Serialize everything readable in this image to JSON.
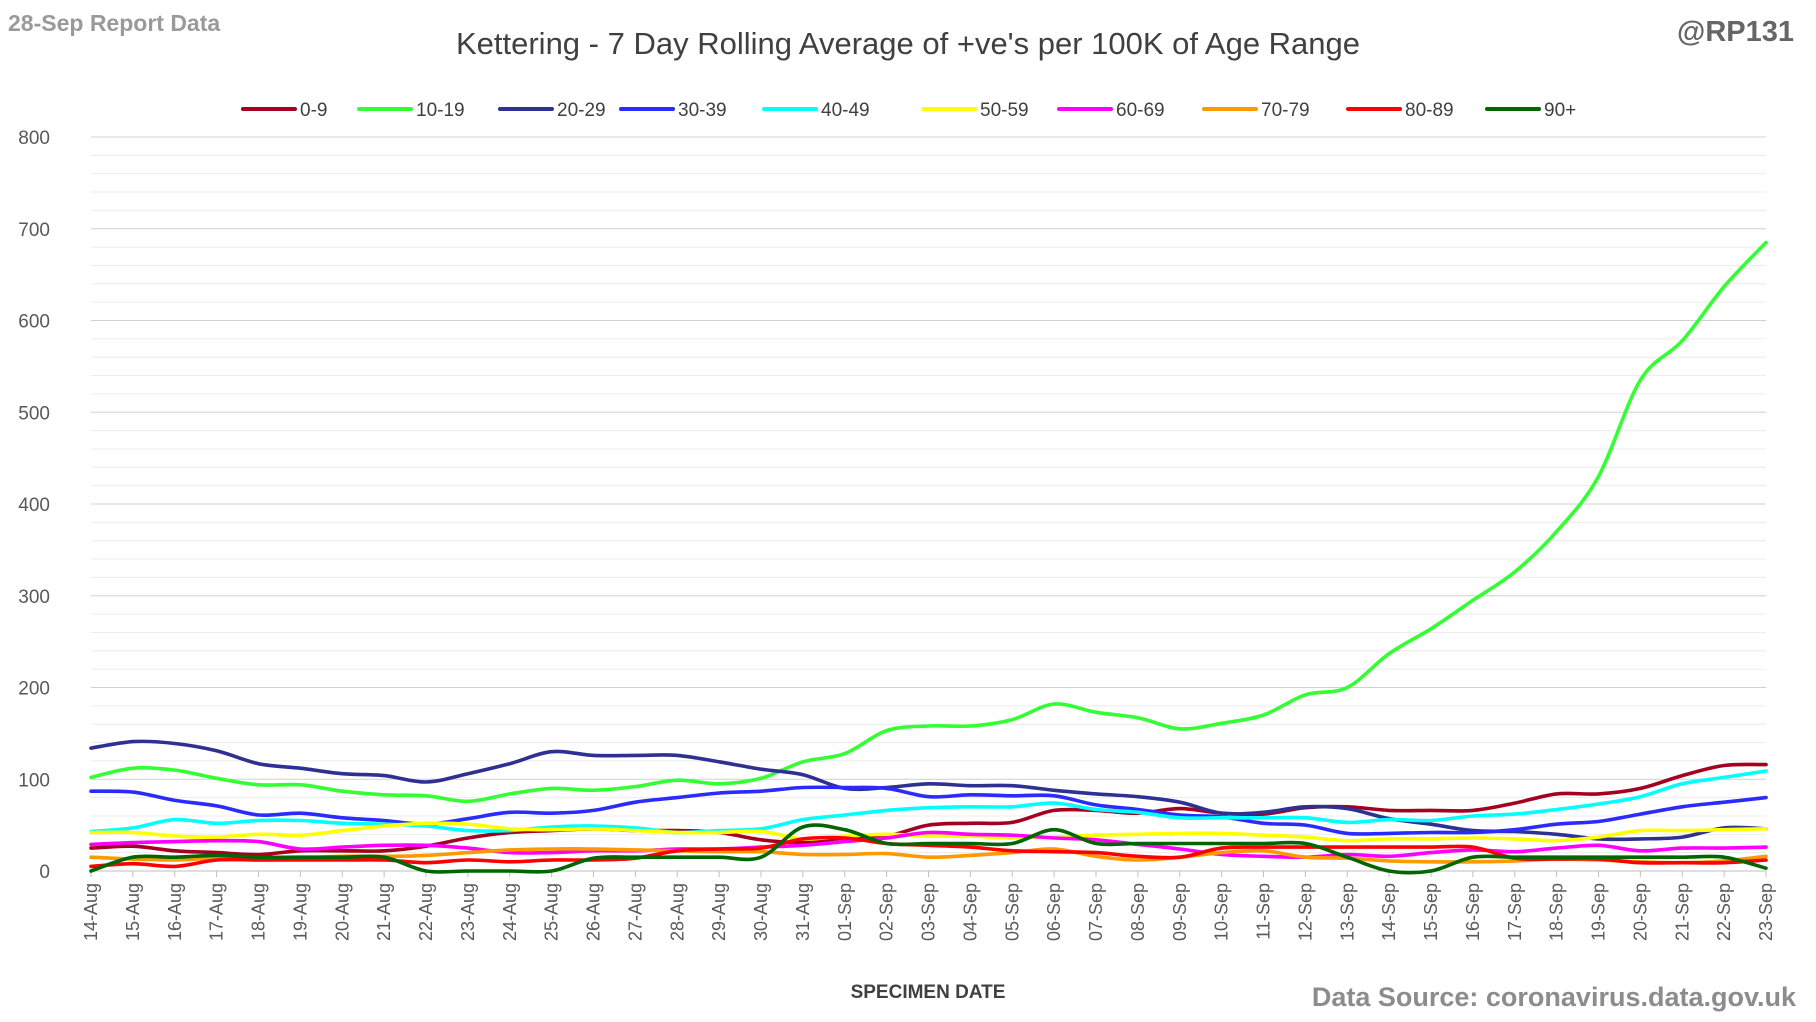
{
  "report_label": "28-Sep Report Data",
  "handle": "@RP131",
  "source_note": "Data Source: coronavirus.data.gov.uk",
  "chart_data": {
    "type": "line",
    "title": "Kettering - 7 Day Rolling Average of +ve's per 100K of Age Range",
    "xlabel": "SPECIMEN DATE",
    "ylabel": "",
    "ylim": [
      0,
      800
    ],
    "yticks": [
      0,
      100,
      200,
      300,
      400,
      500,
      600,
      700,
      800
    ],
    "grid": true,
    "legend_position": "top",
    "categories": [
      "14-Aug",
      "15-Aug",
      "16-Aug",
      "17-Aug",
      "18-Aug",
      "19-Aug",
      "20-Aug",
      "21-Aug",
      "22-Aug",
      "23-Aug",
      "24-Aug",
      "25-Aug",
      "26-Aug",
      "27-Aug",
      "28-Aug",
      "29-Aug",
      "30-Aug",
      "31-Aug",
      "01-Sep",
      "02-Sep",
      "03-Sep",
      "04-Sep",
      "05-Sep",
      "06-Sep",
      "07-Sep",
      "08-Sep",
      "09-Sep",
      "10-Sep",
      "11-Sep",
      "12-Sep",
      "13-Sep",
      "14-Sep",
      "15-Sep",
      "16-Sep",
      "17-Sep",
      "18-Sep",
      "19-Sep",
      "20-Sep",
      "21-Sep",
      "22-Sep",
      "23-Sep"
    ],
    "series": [
      {
        "name": "0-9",
        "color": "#a50021",
        "values": [
          25,
          27,
          22,
          20,
          18,
          22,
          22,
          22,
          27,
          36,
          42,
          44,
          46,
          44,
          44,
          42,
          34,
          31,
          36,
          38,
          50,
          52,
          53,
          66,
          66,
          63,
          68,
          63,
          62,
          69,
          70,
          66,
          66,
          66,
          74,
          84,
          84,
          90,
          104,
          115,
          116
        ]
      },
      {
        "name": "10-19",
        "color": "#33ff33",
        "values": [
          102,
          112,
          110,
          101,
          94,
          94,
          87,
          83,
          82,
          76,
          84,
          90,
          88,
          92,
          99,
          95,
          101,
          119,
          128,
          153,
          158,
          158,
          165,
          182,
          173,
          167,
          155,
          161,
          170,
          192,
          200,
          237,
          264,
          295,
          326,
          370,
          430,
          535,
          578,
          637,
          685
        ]
      },
      {
        "name": "20-29",
        "color": "#2e3192",
        "values": [
          134,
          141,
          139,
          131,
          117,
          112,
          106,
          104,
          97,
          106,
          117,
          130,
          126,
          126,
          126,
          119,
          111,
          105,
          90,
          91,
          95,
          93,
          93,
          88,
          84,
          81,
          75,
          63,
          64,
          70,
          68,
          57,
          51,
          44,
          43,
          40,
          35,
          35,
          37,
          47,
          46
        ]
      },
      {
        "name": "30-39",
        "color": "#2b2bff",
        "values": [
          87,
          86,
          77,
          71,
          61,
          63,
          58,
          55,
          51,
          57,
          64,
          63,
          66,
          75,
          80,
          85,
          87,
          91,
          91,
          90,
          81,
          83,
          82,
          82,
          72,
          67,
          61,
          59,
          52,
          50,
          41,
          41,
          42,
          42,
          45,
          51,
          54,
          62,
          70,
          75,
          80
        ]
      },
      {
        "name": "40-49",
        "color": "#00ffff",
        "values": [
          43,
          47,
          56,
          52,
          55,
          55,
          52,
          51,
          49,
          44,
          44,
          48,
          49,
          47,
          42,
          44,
          46,
          56,
          61,
          66,
          69,
          70,
          70,
          74,
          67,
          64,
          58,
          58,
          58,
          58,
          53,
          56,
          55,
          60,
          62,
          67,
          73,
          81,
          95,
          102,
          109
        ]
      },
      {
        "name": "50-59",
        "color": "#ffff00",
        "values": [
          42,
          42,
          38,
          37,
          40,
          39,
          44,
          49,
          52,
          51,
          46,
          45,
          46,
          44,
          42,
          42,
          43,
          35,
          38,
          40,
          38,
          38,
          36,
          37,
          39,
          40,
          41,
          41,
          39,
          37,
          33,
          35,
          35,
          36,
          35,
          33,
          37,
          44,
          44,
          45,
          46
        ]
      },
      {
        "name": "60-69",
        "color": "#ff00ff",
        "values": [
          29,
          31,
          32,
          33,
          32,
          24,
          26,
          28,
          28,
          25,
          20,
          20,
          22,
          22,
          24,
          24,
          26,
          28,
          32,
          36,
          42,
          40,
          39,
          36,
          34,
          29,
          24,
          18,
          16,
          15,
          18,
          16,
          20,
          23,
          21,
          25,
          28,
          22,
          25,
          25,
          26
        ]
      },
      {
        "name": "70-79",
        "color": "#ff9900",
        "values": [
          15,
          13,
          12,
          14,
          12,
          14,
          16,
          16,
          17,
          20,
          23,
          24,
          24,
          23,
          22,
          21,
          21,
          18,
          18,
          19,
          15,
          17,
          20,
          24,
          16,
          12,
          15,
          20,
          22,
          15,
          14,
          11,
          10,
          10,
          11,
          13,
          12,
          10,
          9,
          11,
          16
        ]
      },
      {
        "name": "80-89",
        "color": "#ff0000",
        "values": [
          5,
          8,
          5,
          12,
          12,
          12,
          12,
          12,
          9,
          12,
          10,
          12,
          12,
          14,
          22,
          24,
          25,
          35,
          36,
          30,
          28,
          26,
          22,
          21,
          20,
          16,
          15,
          25,
          26,
          26,
          26,
          26,
          26,
          26,
          14,
          13,
          13,
          9,
          9,
          9,
          12
        ]
      },
      {
        "name": "90+",
        "color": "#006600",
        "values": [
          0,
          15,
          15,
          17,
          15,
          15,
          15,
          15,
          0,
          0,
          0,
          0,
          14,
          15,
          15,
          15,
          15,
          48,
          45,
          30,
          30,
          30,
          30,
          45,
          30,
          30,
          30,
          30,
          30,
          30,
          15,
          0,
          0,
          15,
          15,
          15,
          15,
          15,
          15,
          15,
          3
        ]
      }
    ]
  }
}
